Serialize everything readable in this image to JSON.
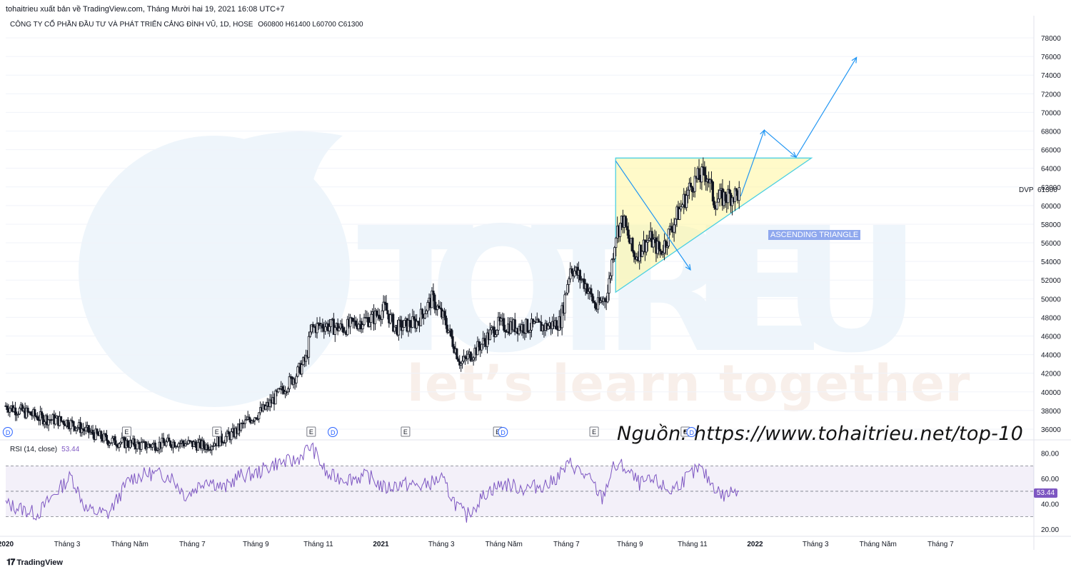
{
  "header": {
    "publisher": "tohaitrieu xuất bản về TradingView.com, Tháng Mười hai 19, 2021 16:08 UTC+7",
    "symbol": "CÔNG TY CỔ PHẦN ĐẦU TƯ VÀ PHÁT TRIỂN CẢNG ĐÌNH VŨ, 1D, HOSE",
    "ohlc": "O60800  H61400  L60700  C61300"
  },
  "watermark": {
    "logo_text": "TOTRIEU",
    "slogan": "let’s learn together"
  },
  "source_note": "Nguồn: https://www.tohaitrieu.net/top-10",
  "annotation": {
    "pattern_label": "ASCENDING TRIANGLE"
  },
  "price_scale": {
    "ticks": [
      "78000",
      "76000",
      "74000",
      "72000",
      "70000",
      "68000",
      "66000",
      "64000",
      "62000",
      "60000",
      "58000",
      "56000",
      "54000",
      "52000",
      "50000",
      "48000",
      "46000",
      "44000",
      "42000",
      "40000",
      "38000",
      "36000"
    ],
    "ticker": "DVP",
    "last_price": "61300"
  },
  "rsi": {
    "label": "RSI (14, close)",
    "value": "53.44",
    "ticks": [
      "80.00",
      "60.00",
      "40.00",
      "20.00"
    ],
    "color": "#7e57c2"
  },
  "time_axis": {
    "labels": [
      "2020",
      "Tháng 3",
      "Tháng Năm",
      "Tháng 7",
      "Tháng 9",
      "Tháng 11",
      "2021",
      "Tháng 3",
      "Tháng Năm",
      "Tháng 7",
      "Tháng 9",
      "Tháng 11",
      "2022",
      "Tháng 3",
      "Tháng Năm",
      "Tháng 7"
    ],
    "bold": [
      "2020",
      "2021",
      "2022"
    ]
  },
  "events": [
    {
      "type": "D",
      "date": "2020-01-03"
    },
    {
      "type": "E",
      "date": "2020-04-28"
    },
    {
      "type": "E",
      "date": "2020-07-25"
    },
    {
      "type": "E",
      "date": "2020-10-25"
    },
    {
      "type": "D",
      "date": "2020-11-15"
    },
    {
      "type": "E",
      "date": "2021-01-25"
    },
    {
      "type": "E",
      "date": "2021-04-25"
    },
    {
      "type": "D",
      "date": "2021-04-30"
    },
    {
      "type": "E",
      "date": "2021-07-28"
    },
    {
      "type": "E",
      "date": "2021-10-25"
    },
    {
      "type": "D",
      "date": "2021-10-31"
    }
  ],
  "branding": {
    "logo": "TradingView"
  },
  "colors": {
    "up": "#131722",
    "triangle_fill": "#fff59d",
    "triangle_edge": "#4dd0e1",
    "arrows": "#2196f3",
    "watermark_blue": "#eef5fb",
    "rsi_band": "#7e57c2"
  },
  "chart_data": {
    "type": "candlestick",
    "x_axis": {
      "start": "2020-01-01",
      "end": "2022-09-30"
    },
    "ylim": [
      35000,
      79000
    ],
    "close_path": [
      [
        "2020-01-01",
        38500
      ],
      [
        "2020-02-05",
        37200
      ],
      [
        "2020-03-01",
        36800
      ],
      [
        "2020-03-20",
        35800
      ],
      [
        "2020-04-10",
        34800
      ],
      [
        "2020-05-15",
        34200
      ],
      [
        "2020-06-15",
        34600
      ],
      [
        "2020-07-15",
        34200
      ],
      [
        "2020-08-10",
        35500
      ],
      [
        "2020-08-25",
        37000
      ],
      [
        "2020-09-10",
        38200
      ],
      [
        "2020-09-25",
        40000
      ],
      [
        "2020-10-10",
        41800
      ],
      [
        "2020-10-20",
        43500
      ],
      [
        "2020-10-25",
        46800
      ],
      [
        "2020-11-05",
        47200
      ],
      [
        "2020-11-25",
        46800
      ],
      [
        "2020-12-10",
        47500
      ],
      [
        "2020-12-25",
        48000
      ],
      [
        "2021-01-05",
        49000
      ],
      [
        "2021-01-15",
        46800
      ],
      [
        "2021-02-05",
        47500
      ],
      [
        "2021-02-20",
        50000
      ],
      [
        "2021-03-05",
        47500
      ],
      [
        "2021-03-20",
        43000
      ],
      [
        "2021-04-10",
        45200
      ],
      [
        "2021-04-25",
        47200
      ],
      [
        "2021-05-15",
        47000
      ],
      [
        "2021-06-10",
        47000
      ],
      [
        "2021-06-25",
        47500
      ],
      [
        "2021-07-05",
        53500
      ],
      [
        "2021-07-20",
        51500
      ],
      [
        "2021-07-30",
        49000
      ],
      [
        "2021-08-10",
        50500
      ],
      [
        "2021-08-18",
        57000
      ],
      [
        "2021-08-25",
        58500
      ],
      [
        "2021-09-05",
        54500
      ],
      [
        "2021-09-20",
        56500
      ],
      [
        "2021-10-01",
        55000
      ],
      [
        "2021-10-15",
        58500
      ],
      [
        "2021-11-01",
        62500
      ],
      [
        "2021-11-15",
        63500
      ],
      [
        "2021-11-22",
        60500
      ],
      [
        "2021-12-05",
        61000
      ],
      [
        "2021-12-17",
        61300
      ]
    ],
    "rsi_path": [
      [
        "2020-01-01",
        40
      ],
      [
        "2020-02-01",
        32
      ],
      [
        "2020-02-20",
        50
      ],
      [
        "2020-03-05",
        62
      ],
      [
        "2020-03-20",
        35
      ],
      [
        "2020-04-10",
        32
      ],
      [
        "2020-05-01",
        60
      ],
      [
        "2020-05-20",
        64
      ],
      [
        "2020-06-10",
        62
      ],
      [
        "2020-06-25",
        46
      ],
      [
        "2020-07-15",
        60
      ],
      [
        "2020-08-01",
        52
      ],
      [
        "2020-08-15",
        62
      ],
      [
        "2020-09-01",
        64
      ],
      [
        "2020-09-20",
        72
      ],
      [
        "2020-10-10",
        74
      ],
      [
        "2020-10-25",
        86
      ],
      [
        "2020-11-10",
        62
      ],
      [
        "2020-12-01",
        60
      ],
      [
        "2020-12-20",
        62
      ],
      [
        "2021-01-05",
        52
      ],
      [
        "2021-01-20",
        56
      ],
      [
        "2021-02-10",
        54
      ],
      [
        "2021-03-01",
        60
      ],
      [
        "2021-03-15",
        40
      ],
      [
        "2021-03-25",
        30
      ],
      [
        "2021-04-15",
        50
      ],
      [
        "2021-05-01",
        56
      ],
      [
        "2021-05-20",
        52
      ],
      [
        "2021-06-15",
        56
      ],
      [
        "2021-07-05",
        72
      ],
      [
        "2021-07-25",
        58
      ],
      [
        "2021-08-05",
        44
      ],
      [
        "2021-08-15",
        68
      ],
      [
        "2021-08-25",
        70
      ],
      [
        "2021-09-10",
        56
      ],
      [
        "2021-09-25",
        58
      ],
      [
        "2021-10-10",
        50
      ],
      [
        "2021-10-25",
        60
      ],
      [
        "2021-11-08",
        68
      ],
      [
        "2021-11-20",
        56
      ],
      [
        "2021-12-01",
        46
      ],
      [
        "2021-12-17",
        53.44
      ]
    ],
    "rsi_ylim": [
      15,
      90
    ],
    "rsi_levels": [
      70,
      50,
      30
    ],
    "pattern": {
      "name": "ASCENDING TRIANGLE",
      "points": [
        [
          "2021-08-18",
          65100
        ],
        [
          "2022-02-25",
          65100
        ],
        [
          "2021-08-18",
          50700
        ]
      ]
    },
    "projection_arrows": [
      [
        [
          "2021-12-18",
          61000
        ],
        [
          "2022-01-10",
          68100
        ]
      ],
      [
        [
          "2022-01-10",
          68100
        ],
        [
          "2022-02-10",
          65200
        ]
      ],
      [
        [
          "2022-02-10",
          65200
        ],
        [
          "2022-04-10",
          75900
        ]
      ],
      [
        [
          "2021-08-18",
          64800
        ],
        [
          "2021-10-30",
          53100
        ]
      ]
    ]
  }
}
